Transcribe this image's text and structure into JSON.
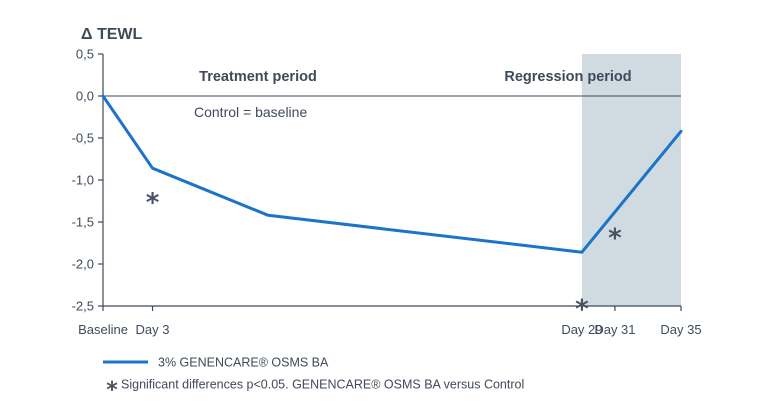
{
  "chart_data": {
    "type": "line",
    "ylabel": "Δ TEWL",
    "ylim": [
      -2.5,
      0.5
    ],
    "yticks": [
      0.5,
      0.0,
      -0.5,
      -1.0,
      -1.5,
      -2.0,
      -2.5
    ],
    "ytick_labels": [
      "0,5",
      "0,0",
      "-0,5",
      "-1,0",
      "-1,5",
      "-2,0",
      "-2,5"
    ],
    "xlim": [
      0,
      35
    ],
    "xticks": [
      0,
      3,
      29,
      31,
      35
    ],
    "xtick_labels": [
      "Baseline",
      "Day 3",
      "Day 29",
      "Day 31",
      "Day 35"
    ],
    "series": [
      {
        "name": "3% GENENCARE® OSMS BA",
        "color": "#1b74c9",
        "x": [
          0,
          3,
          10,
          29,
          35
        ],
        "y": [
          0.0,
          -0.86,
          -1.42,
          -1.86,
          -0.42
        ]
      }
    ],
    "baseline": {
      "y": 0.0,
      "label": "Control = baseline"
    },
    "periods": [
      {
        "name": "Treatment period",
        "x_start": 0,
        "x_end": 29,
        "shaded": false
      },
      {
        "name": "Regression period",
        "x_start": 29,
        "x_end": 35,
        "shaded": true,
        "color": "#cfdbe0"
      }
    ],
    "significance_markers": [
      {
        "symbol": "*",
        "x": 3,
        "y": -1.25
      },
      {
        "symbol": "*",
        "x": 29,
        "y": -2.52
      },
      {
        "symbol": "*",
        "x": 31,
        "y": -1.67
      }
    ],
    "legend": [
      {
        "type": "line",
        "text": "3% GENENCARE® OSMS BA",
        "color": "#1b74c9"
      },
      {
        "type": "marker",
        "symbol": "*",
        "text": "Significant  differences p<0.05. GENENCARE® OSMS BA versus Control"
      }
    ],
    "axis_color": "#3f4a5a"
  }
}
